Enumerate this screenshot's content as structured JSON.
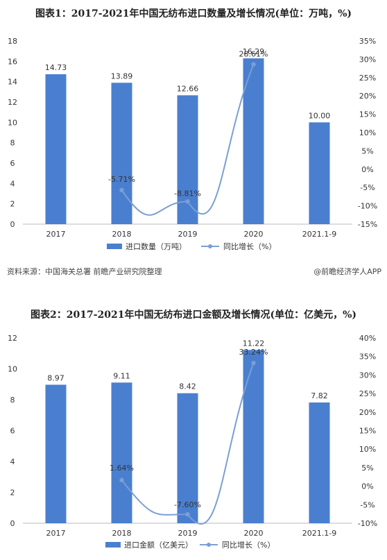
{
  "footer": {
    "source": "资料来源：中国海关总署 前瞻产业研究院整理",
    "brand": "@前瞻经济学人APP"
  },
  "chart_data": [
    {
      "type": "bar",
      "title": "图表1：2017-2021年中国无纺布进口数量及增长情况(单位：万吨，%)",
      "categories": [
        "2017",
        "2018",
        "2019",
        "2020",
        "2021.1-9"
      ],
      "series": [
        {
          "name": "进口数量（万吨）",
          "type": "bar",
          "axis": "left",
          "values": [
            14.73,
            13.89,
            12.66,
            16.29,
            10.0
          ],
          "labels": [
            "14.73",
            "13.89",
            "12.66",
            "16.29",
            "10.00"
          ]
        },
        {
          "name": "同比增长（%）",
          "type": "line",
          "axis": "right",
          "values": [
            null,
            -5.71,
            -8.81,
            28.61,
            null
          ],
          "labels": [
            "",
            "-5.71%",
            "-8.81%",
            "28.61%",
            ""
          ]
        }
      ],
      "ylim": [
        0,
        18
      ],
      "yticks": [
        0,
        2,
        4,
        6,
        8,
        10,
        12,
        14,
        16,
        18
      ],
      "y2lim": [
        -15,
        35
      ],
      "y2ticks": [
        35,
        30,
        25,
        20,
        15,
        10,
        5,
        0,
        -5,
        -10,
        -15
      ],
      "legend": "bottom",
      "colors": {
        "bar": "#4a7fd0",
        "line": "#7a9ed6"
      }
    },
    {
      "type": "bar",
      "title": "图表2：2017-2021年中国无纺布进口金额及增长情况(单位：亿美元，%)",
      "categories": [
        "2017",
        "2018",
        "2019",
        "2020",
        "2021.1-9"
      ],
      "series": [
        {
          "name": "进口金额（亿美元）",
          "type": "bar",
          "axis": "left",
          "values": [
            8.97,
            9.11,
            8.42,
            11.22,
            7.82
          ],
          "labels": [
            "8.97",
            "9.11",
            "8.42",
            "11.22",
            "7.82"
          ]
        },
        {
          "name": "同比增长（%）",
          "type": "line",
          "axis": "right",
          "values": [
            null,
            1.64,
            -7.6,
            33.24,
            null
          ],
          "labels": [
            "",
            "1.64%",
            "-7.60%",
            "33.24%",
            ""
          ]
        }
      ],
      "ylim": [
        0,
        12
      ],
      "yticks": [
        0,
        2,
        4,
        6,
        8,
        10,
        12
      ],
      "y2lim": [
        -10,
        40
      ],
      "y2ticks": [
        40,
        35,
        30,
        25,
        20,
        15,
        10,
        5,
        0,
        -5,
        -10
      ],
      "legend": "bottom",
      "colors": {
        "bar": "#4a7fd0",
        "line": "#7a9ed6"
      }
    }
  ]
}
